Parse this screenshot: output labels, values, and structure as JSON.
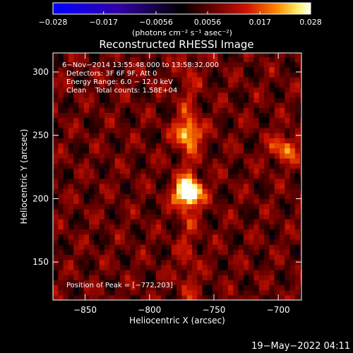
{
  "chart_data": {
    "type": "heatmap",
    "title": "Reconstructed RHESSI Image",
    "xlabel": "Heliocentric X (arcsec)",
    "ylabel": "Heliocentric Y (arcsec)",
    "xlim": [
      -875,
      -682
    ],
    "ylim": [
      120,
      315
    ],
    "xticks": [
      -850,
      -800,
      -750,
      -700
    ],
    "yticks": [
      150,
      200,
      250,
      300
    ],
    "xtick_labels": [
      "−850",
      "−800",
      "−750",
      "−700"
    ],
    "ytick_labels": [
      "150",
      "200",
      "250",
      "300"
    ],
    "colorbar": {
      "min": -0.028,
      "max": 0.028,
      "ticks": [
        -0.028,
        -0.017,
        -0.0056,
        0.0056,
        0.017,
        0.028
      ],
      "tick_labels": [
        "−0.028",
        "−0.017",
        "−0.0056",
        "0.0056",
        "0.017",
        "0.028"
      ],
      "unit_label": "(photons cm⁻² s⁻¹ asec⁻²)"
    },
    "annotations": [
      "6−Nov−2014 13:55:48.000 to 13:58:32.000",
      "Detectors: 3F 6F 9F, Att 0",
      "Energy Range: 6.0 − 12.0 keV",
      "Clean    Total counts: 1.58E+04",
      "Position of Peak = [−772,203]"
    ],
    "peak": {
      "x": -772,
      "y": 203,
      "value": 0.028
    },
    "secondary_sources": [
      {
        "x": -772,
        "y": 250,
        "value": 0.016
      },
      {
        "x": -697,
        "y": 238,
        "value": 0.014
      }
    ],
    "footer": "19−May−2022 04:11"
  },
  "colors": {
    "background": "#000000",
    "foreground": "#ffffff",
    "colormap": [
      "#0000ff",
      "#2200cc",
      "#330066",
      "#000000",
      "#550000",
      "#aa0000",
      "#dd2200",
      "#ff8800",
      "#ffee44",
      "#ffffff"
    ]
  }
}
